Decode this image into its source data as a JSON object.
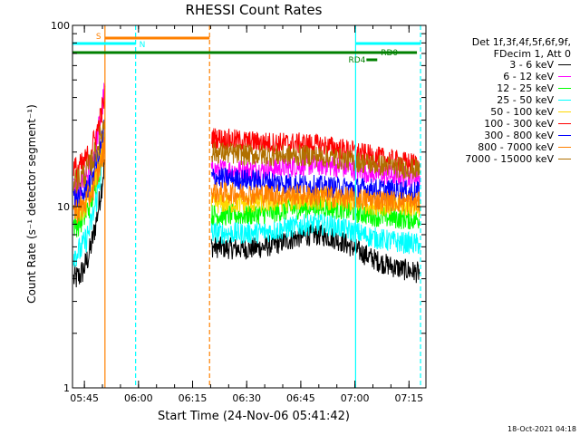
{
  "chart_data": {
    "type": "line",
    "title": "RHESSI Count Rates",
    "xlabel": "Start Time (24-Nov-06 05:41:42)",
    "ylabel": "Count Rate (s⁻¹ detector segment⁻¹)",
    "y_scale": "log",
    "ylim": [
      1,
      100
    ],
    "y_tick_labels": [
      "1",
      "10",
      "100"
    ],
    "x_tick_labels": [
      "05:45",
      "06:00",
      "06:15",
      "06:30",
      "06:45",
      "07:00",
      "07:15"
    ],
    "xlim_minutes": [
      0,
      98
    ],
    "x_tick_minutes": [
      3.3,
      18.3,
      33.3,
      48.3,
      63.3,
      78.3,
      93.3
    ],
    "data_gap_minutes": [
      9,
      38.5
    ],
    "legend_header": [
      "Det 1f,3f,4f,5f,6f,9f,",
      "FDecim 1, Att 0"
    ],
    "series": [
      {
        "name": "3 - 6 keV",
        "color": "#000000",
        "start": 4.0,
        "peak": 18,
        "after": 6.0,
        "bump": 7.0,
        "end": 4.3
      },
      {
        "name": "6 - 12 keV",
        "color": "#ff00ff",
        "start": 12.0,
        "peak": 45,
        "after": 16.0,
        "bump": 17.0,
        "end": 14.5
      },
      {
        "name": "12 - 25 keV",
        "color": "#00ff00",
        "start": 8.0,
        "peak": 24,
        "after": 9.0,
        "bump": 10.0,
        "end": 8.5
      },
      {
        "name": "25 - 50 keV",
        "color": "#00ffff",
        "start": 5.5,
        "peak": 22,
        "after": 7.2,
        "bump": 8.0,
        "end": 6.2
      },
      {
        "name": "50 - 100 keV",
        "color": "#ffd700",
        "start": 9.0,
        "peak": 26,
        "after": 10.5,
        "bump": 11.0,
        "end": 10.0
      },
      {
        "name": "100 - 300 keV",
        "color": "#ff0000",
        "start": 16.0,
        "peak": 40,
        "after": 24.0,
        "bump": 22.0,
        "end": 17.0
      },
      {
        "name": "300 - 800 keV",
        "color": "#0000ff",
        "start": 11.0,
        "peak": 28,
        "after": 14.5,
        "bump": 13.0,
        "end": 12.0
      },
      {
        "name": "800 - 7000 keV",
        "color": "#ff8000",
        "start": 9.5,
        "peak": 22,
        "after": 12.0,
        "bump": 11.5,
        "end": 10.5
      },
      {
        "name": "7000 - 15000 keV",
        "color": "#b07000",
        "start": 14.0,
        "peak": 30,
        "after": 20.0,
        "bump": 19.0,
        "end": 16.0
      }
    ],
    "flags": [
      {
        "label": "S",
        "color": "#ff8000",
        "start_min": 9.0,
        "end_min": 38.0
      },
      {
        "label": "N",
        "color": "#00ffff",
        "start_min": 0.0,
        "end_min": 17.5
      },
      {
        "label": "N",
        "color": "#00ffff",
        "start_min": 78.5,
        "end_min": 96.5
      },
      {
        "label": "",
        "color": "#008000",
        "start_min": 0.0,
        "end_min": 95.5
      },
      {
        "label": "RD0",
        "color": "#008000",
        "start_min": 82.0,
        "end_min": 85.0
      },
      {
        "label": "RD4",
        "color": "#008000",
        "start_min": 81.5,
        "end_min": 84.5
      }
    ],
    "vlines": [
      {
        "minute": 9.0,
        "color": "#ff8000",
        "style": "solid"
      },
      {
        "minute": 38.0,
        "color": "#ff8000",
        "style": "dash"
      },
      {
        "minute": 17.5,
        "color": "#00ffff",
        "style": "dash"
      },
      {
        "minute": 78.5,
        "color": "#00ffff",
        "style": "solid"
      },
      {
        "minute": 96.5,
        "color": "#00ffff",
        "style": "dash"
      }
    ]
  },
  "footer": "18-Oct-2021 04:18"
}
